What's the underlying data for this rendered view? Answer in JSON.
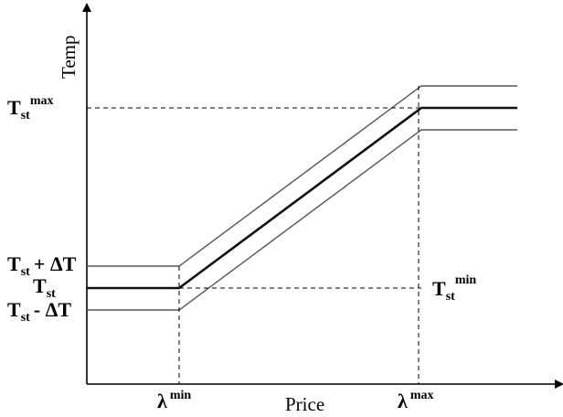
{
  "axes": {
    "x_label": "Price",
    "y_label": "Temp"
  },
  "labels": {
    "t_max_base": "T",
    "t_max_sub": "st",
    "t_max_sup": "max",
    "t_plus_base": "T",
    "t_plus_sub": "st",
    "t_plus_suffix": "+ ΔT",
    "t_st_base": "T",
    "t_st_sub": "st",
    "t_minus_base": "T",
    "t_minus_sub": "st",
    "t_minus_suffix": "- ΔT",
    "t_min_base": "T",
    "t_min_sub": "st",
    "t_min_sup": "min",
    "lambda_min_base": "λ",
    "lambda_min_sup": "min",
    "lambda_max_base": "λ",
    "lambda_max_sup": "max"
  },
  "colors": {
    "axis": "#000000",
    "main_line": "#111111",
    "band_line": "#555555",
    "dashed": "#000000"
  }
}
